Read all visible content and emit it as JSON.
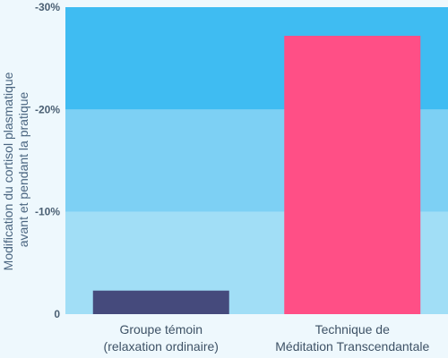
{
  "chart_data": {
    "type": "bar",
    "ylabel": [
      "Modification du cortisol plasmatique",
      "avant et pendant la pratique"
    ],
    "categories": [
      [
        "Groupe témoin",
        "(relaxation ordinaire)"
      ],
      [
        "Technique de",
        "Méditation Transcendantale"
      ]
    ],
    "values": [
      -2.3,
      -27.2
    ],
    "bar_colors": [
      "#454a7c",
      "#ff4f86"
    ],
    "ylim": [
      0,
      -30
    ],
    "yticks": [
      {
        "value": 0,
        "label": "0"
      },
      {
        "value": -10,
        "label": "-10%"
      },
      {
        "value": -20,
        "label": "-20%"
      },
      {
        "value": -30,
        "label": "-30%"
      }
    ],
    "bands": [
      {
        "from": 0,
        "to": -10,
        "color": "#a1def6"
      },
      {
        "from": -10,
        "to": -20,
        "color": "#7dd0f4"
      },
      {
        "from": -20,
        "to": -30,
        "color": "#3fbcf2"
      }
    ],
    "grid": false,
    "legend": "none"
  }
}
